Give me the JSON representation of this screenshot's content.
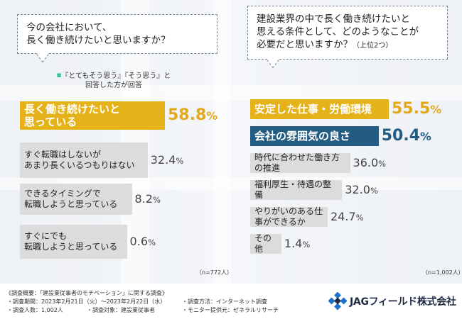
{
  "chart_data": [
    {
      "type": "bar",
      "question": [
        "今の会社において、",
        "長く働き続けたいと思いますか？"
      ],
      "note": [
        "『とてもそう思う』『そう思う』と",
        "回答した方が回答"
      ],
      "sample": "（n=772人）",
      "series": [
        {
          "values": [
            58.8,
            32.4,
            8.2,
            0.6
          ]
        }
      ],
      "categories": [
        [
          "長く働き続けたいと",
          "思っている"
        ],
        [
          "すぐ転職はしないが",
          "あまり長くいるつもりはない"
        ],
        [
          "できるタイミングで",
          "転職しようと思っている"
        ],
        [
          "すぐにでも",
          "転職しようと思っている"
        ]
      ],
      "value_labels": [
        [
          "58.8",
          "%"
        ],
        [
          "32.4",
          "%"
        ],
        [
          "8.2",
          "%"
        ],
        [
          "0.6",
          "%"
        ]
      ]
    },
    {
      "type": "bar",
      "question": [
        "建設業界の中で長く働き続けたいと",
        "思える条件として、どのようなことが",
        "必要だと思いますか？"
      ],
      "question_suffix": "（上位2つ）",
      "sample": "（n=1,002人）",
      "series": [
        {
          "values": [
            55.5,
            50.4,
            36.0,
            32.0,
            24.7,
            1.4
          ]
        }
      ],
      "categories": [
        "安定した仕事・労働環境",
        "会社の雰囲気の良さ",
        "時代に合わせた働き方の推進",
        "福利厚生・待遇の整備",
        "やりがいのある仕事ができるか",
        "その他"
      ],
      "value_labels": [
        [
          "55.5",
          "%"
        ],
        [
          "50.4",
          "%"
        ],
        [
          "36.0",
          "%"
        ],
        [
          "32.0",
          "%"
        ],
        [
          "24.7",
          "%"
        ],
        [
          "1.4",
          "%"
        ]
      ]
    }
  ],
  "colors": {
    "highlight_yellow": "#e6b21a",
    "highlight_blue": "#235c82",
    "bar_grey": "#dcdcdc"
  },
  "footer": {
    "survey_title": "《調査概要：「建設業従事者のモチベーション」に関する調査》",
    "period": "・調査期間：2023年2月21日（火）～2023年2月22日（水）",
    "count": "・調査人数：1,002人",
    "target": "・調査対象：建設業従事者",
    "method": "・調査方法：インターネット調査",
    "provider": "・モニター提供元：ゼネラルリサーチ"
  },
  "logo": {
    "text": "JAGフィールド株式会社",
    "icon": "jag-logo-icon"
  }
}
